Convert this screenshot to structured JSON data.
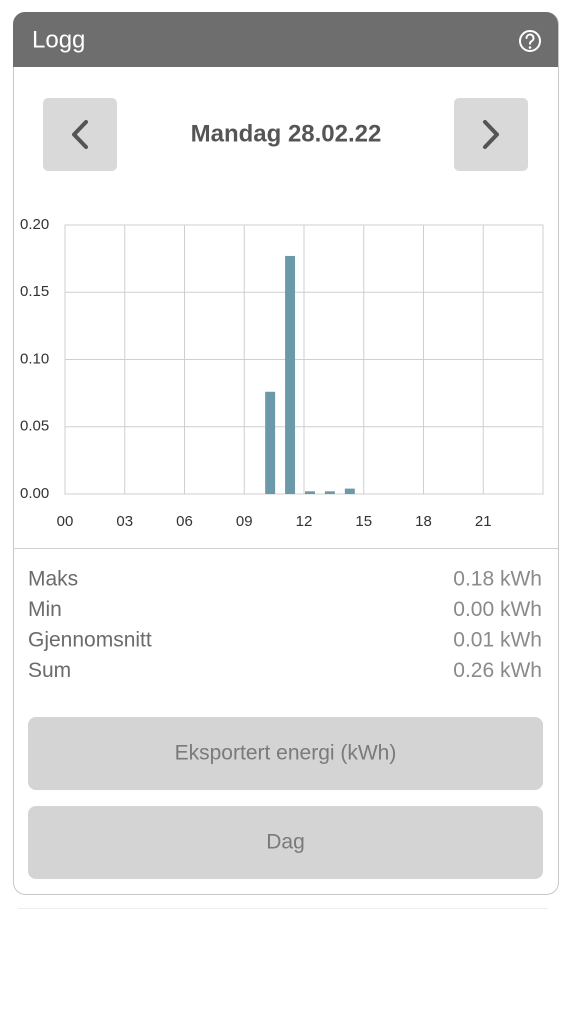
{
  "header": {
    "title": "Logg"
  },
  "date": "Mandag 28.02.22",
  "chart_data": {
    "type": "bar",
    "x": [
      0,
      1,
      2,
      3,
      4,
      5,
      6,
      7,
      8,
      9,
      10,
      11,
      12,
      13,
      14,
      15,
      16,
      17,
      18,
      19,
      20,
      21,
      22,
      23
    ],
    "values": [
      0,
      0,
      0,
      0,
      0,
      0,
      0,
      0,
      0,
      0,
      0.076,
      0.177,
      0.002,
      0.002,
      0.004,
      0,
      0,
      0,
      0,
      0,
      0,
      0,
      0,
      0
    ],
    "color": "#6a9aaa",
    "xlim": [
      0,
      24
    ],
    "xticks": [
      {
        "value": 0,
        "label": "00"
      },
      {
        "value": 3,
        "label": "03"
      },
      {
        "value": 6,
        "label": "06"
      },
      {
        "value": 9,
        "label": "09"
      },
      {
        "value": 12,
        "label": "12"
      },
      {
        "value": 15,
        "label": "15"
      },
      {
        "value": 18,
        "label": "18"
      },
      {
        "value": 21,
        "label": "21"
      }
    ],
    "ylim": [
      0,
      0.2
    ],
    "yticks": [
      {
        "value": 0,
        "label": "0.00"
      },
      {
        "value": 0.05,
        "label": "0.05"
      },
      {
        "value": 0.1,
        "label": "0.10"
      },
      {
        "value": 0.15,
        "label": "0.15"
      },
      {
        "value": 0.2,
        "label": "0.20"
      }
    ],
    "grid": true
  },
  "stats": [
    {
      "label": "Maks",
      "value": "0.18 kWh"
    },
    {
      "label": "Min",
      "value": "0.00 kWh"
    },
    {
      "label": "Gjennomsnitt",
      "value": "0.01 kWh"
    },
    {
      "label": "Sum",
      "value": "0.26 kWh"
    }
  ],
  "buttons": [
    "Eksportert energi (kWh)",
    "Dag"
  ]
}
